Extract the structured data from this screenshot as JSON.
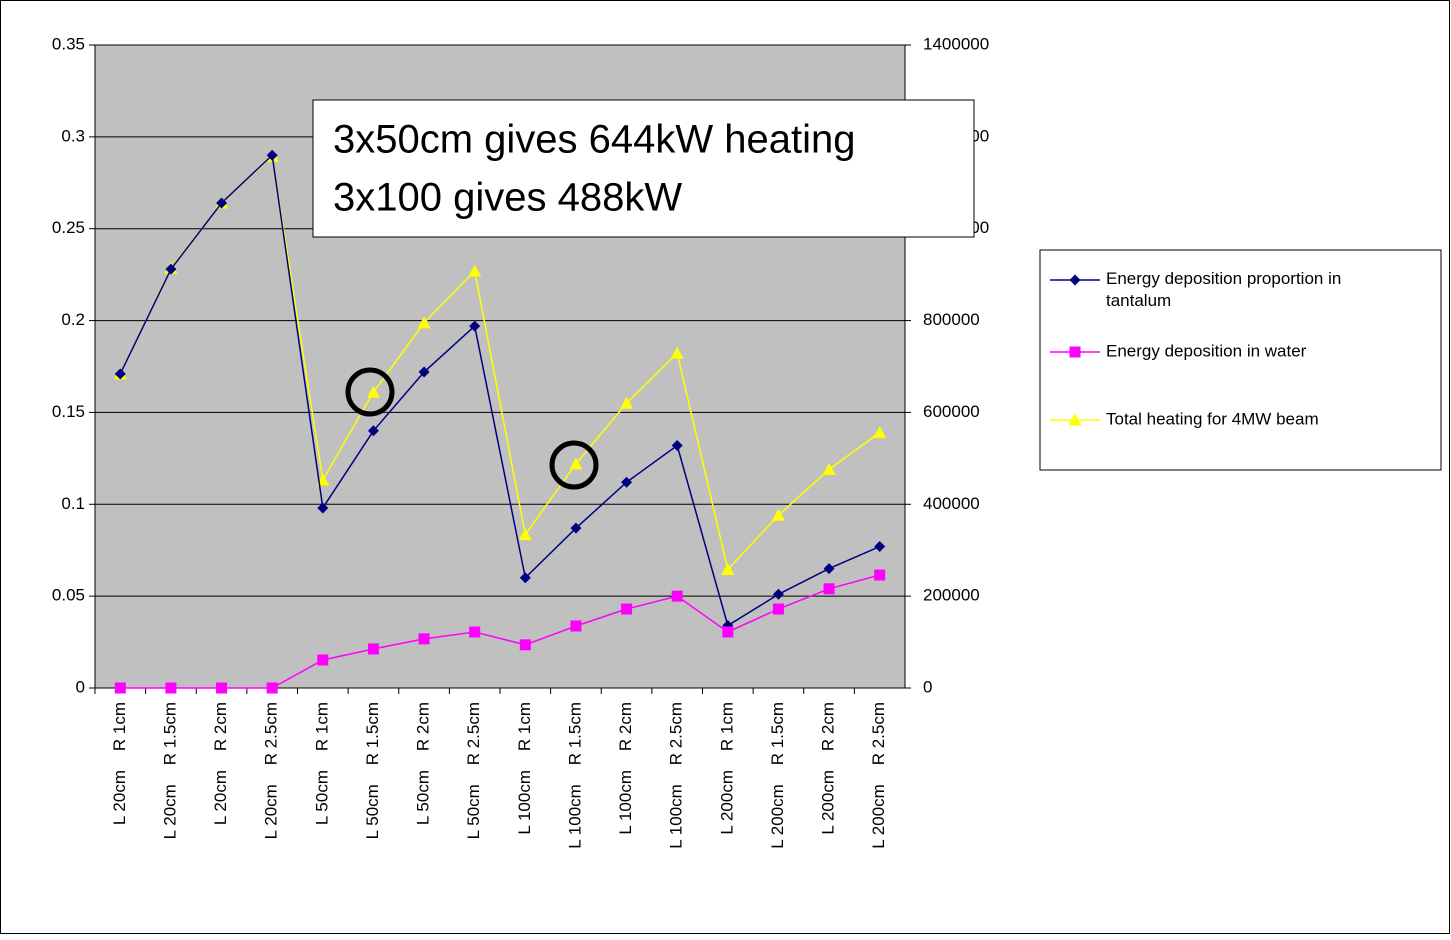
{
  "chart_data": {
    "type": "line",
    "annotation": [
      "3x50cm gives 644kW heating",
      "3x100 gives 488kW"
    ],
    "categories": [
      "L 20cm    R 1cm",
      "L 20cm    R 1.5cm",
      "L 20cm    R 2cm",
      "L 20cm    R 2.5cm",
      "L 50cm    R 1cm",
      "L 50cm    R 1.5cm",
      "L 50cm    R 2cm",
      "L 50cm    R 2.5cm",
      "L 100cm    R 1cm",
      "L 100cm    R 1.5cm",
      "L 100cm    R 2cm",
      "L 100cm    R 2.5cm",
      "L 200cm    R 1cm",
      "L 200cm    R 1.5cm",
      "L 200cm    R 2cm",
      "L 200cm    R 2.5cm"
    ],
    "series": [
      {
        "name": "Energy deposition proportion in tantalum",
        "color": "#000080",
        "marker": "diamond",
        "values": [
          0.171,
          0.228,
          0.264,
          0.29,
          0.098,
          0.14,
          0.172,
          0.197,
          0.06,
          0.087,
          0.112,
          0.132,
          0.034,
          0.051,
          0.065,
          0.077
        ]
      },
      {
        "name": "Energy deposition in water",
        "color": "#ff00ff",
        "marker": "square",
        "axis": "y2",
        "values": [
          0,
          0,
          0,
          0,
          61000,
          85000,
          107000,
          122000,
          94000,
          135000,
          172000,
          200000,
          122000,
          172000,
          216000,
          246000
        ]
      },
      {
        "name": "Total heating for 4MW beam",
        "color": "#ffff00",
        "marker": "triangle",
        "axis": "y2",
        "values": [
          684000,
          914000,
          1056000,
          1158000,
          453000,
          644000,
          795000,
          908000,
          334000,
          488000,
          620000,
          729000,
          258000,
          376000,
          476000,
          556000
        ]
      }
    ],
    "ylim": [
      0,
      0.35
    ],
    "yticks": [
      0,
      0.05,
      0.1,
      0.15,
      0.2,
      0.25,
      0.3,
      0.35
    ],
    "y2lim": [
      0,
      1400000
    ],
    "y2ticks": [
      0,
      200000,
      400000,
      600000,
      800000,
      1000000,
      1200000,
      1400000
    ],
    "grid": true,
    "legend": "right",
    "plot_background": "#c0c0c0"
  }
}
